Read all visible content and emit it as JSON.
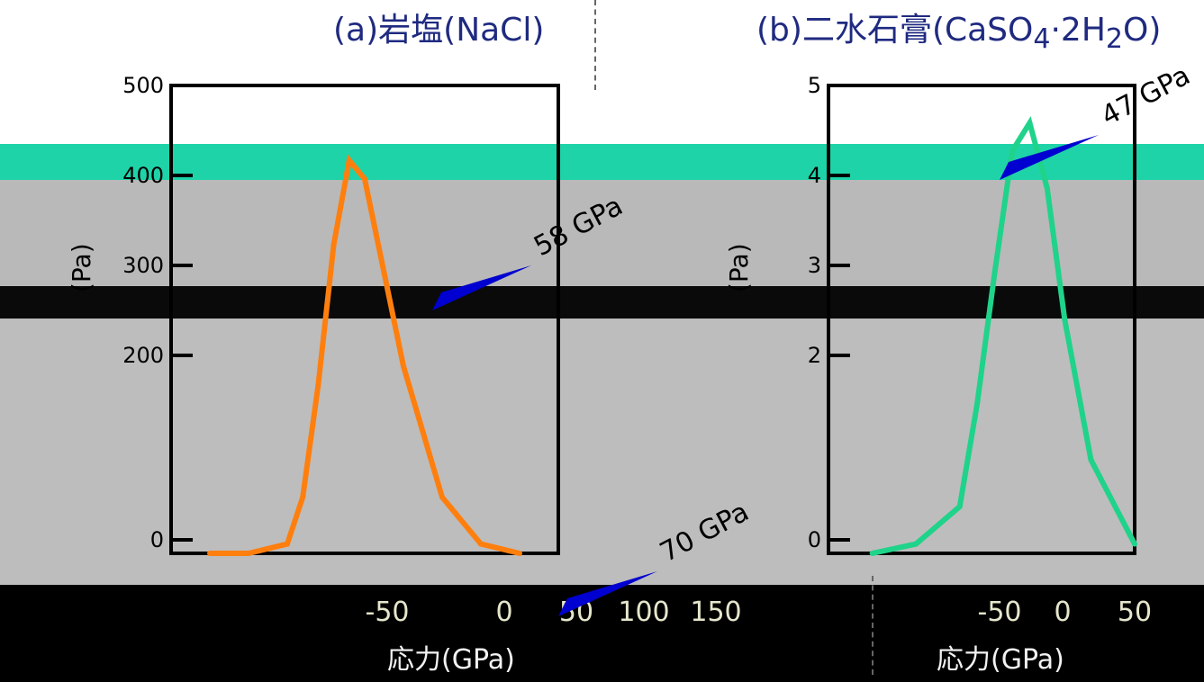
{
  "titles": {
    "panel_a": "(a)岩塩(NaCl)",
    "panel_b": "(b)二水石膏(CaSO",
    "panel_b_sub": "4",
    "panel_b_tail": "·2H",
    "panel_b_sub2": "2",
    "panel_b_end": "O)"
  },
  "bottom_caption": "応力(GPa)",
  "colors": {
    "nacl_line": "#ff7f0e",
    "gypsum_line": "#1fd38a",
    "arrow_blue": "#0000d0",
    "frame": "#000000"
  },
  "chart_data": [
    {
      "type": "line",
      "name": "panel-a",
      "title": "(a)岩塩(NaCl)",
      "ylabel": "(Pa)",
      "y_tick_labels": [
        "0",
        "200",
        "300",
        "400",
        "500"
      ],
      "x_tick_labels": [
        "-50",
        "0",
        "50",
        "100",
        "150"
      ],
      "ylim": [
        0,
        500
      ],
      "xlim": [
        -75,
        175
      ],
      "annotations": [
        "58 GPa",
        "70 GPa"
      ],
      "series": [
        {
          "x": [
            -50,
            -25,
            0,
            10,
            20,
            30,
            40,
            50,
            60,
            75,
            100,
            125,
            150
          ],
          "values": [
            0,
            0,
            10,
            60,
            180,
            330,
            420,
            400,
            320,
            200,
            60,
            10,
            0
          ]
        }
      ]
    },
    {
      "type": "line",
      "name": "panel-b",
      "title": "(b)二水石膏(CaSO4·2H2O)",
      "ylabel": "(Pa)",
      "y_tick_labels": [
        "0",
        "2",
        "3",
        "4",
        "5"
      ],
      "x_tick_labels": [
        "-50",
        "0",
        "50"
      ],
      "ylim": [
        0,
        5
      ],
      "xlim": [
        -75,
        100
      ],
      "annotations": [
        "47 GPa"
      ],
      "series": [
        {
          "x": [
            -50,
            -25,
            0,
            10,
            20,
            30,
            40,
            50,
            60,
            75,
            100
          ],
          "values": [
            0,
            0.1,
            0.5,
            1.6,
            3.0,
            4.3,
            4.6,
            3.9,
            2.5,
            1.0,
            0.1
          ]
        }
      ]
    }
  ]
}
